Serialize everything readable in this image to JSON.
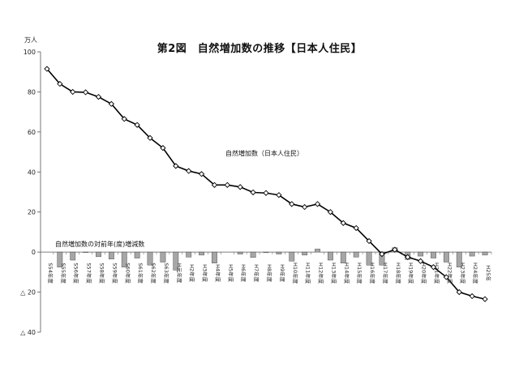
{
  "chart_data": {
    "type": "line",
    "title": "第2図　自然増加数の推移【日本人住民】",
    "ylabel": "万人",
    "ylim": [
      -40,
      100
    ],
    "yticks": [
      100,
      80,
      60,
      40,
      20,
      0,
      -20,
      -40
    ],
    "ytick_labels": [
      "100",
      "80",
      "60",
      "40",
      "20",
      "0",
      "△ 20",
      "△ 40"
    ],
    "categories": [
      "S54年度",
      "S55年度",
      "S56年度",
      "S57年度",
      "S58年度",
      "S59年度",
      "S60年度",
      "S61年度",
      "S62年度",
      "S63年度",
      "H元年度",
      "H2年度",
      "H3年度",
      "H4年度",
      "H5年度",
      "H6年度",
      "H7年度",
      "H8年度",
      "H9年度",
      "H10年度",
      "H11年度",
      "H12年度",
      "H13年度",
      "H14年度",
      "H15年度",
      "H16年度",
      "H17年度",
      "H18年度",
      "H19年度",
      "H20年度",
      "H21年度",
      "H22年度",
      "H23年度",
      "H24年度",
      "H25年"
    ],
    "series": [
      {
        "name": "自然増加数（日本人住民）",
        "kind": "line",
        "marker": "diamond",
        "values": [
          91.5,
          84,
          80,
          79.8,
          77.5,
          74,
          66.5,
          63.5,
          57,
          52,
          43,
          40.5,
          39,
          33.5,
          33.5,
          32.5,
          29.8,
          29.5,
          28.5,
          24,
          22.5,
          24,
          20,
          14.5,
          12,
          5.5,
          -1,
          1.2,
          -2.5,
          -4.5,
          -7.5,
          -12.5,
          -20,
          -22,
          -23.5
        ]
      },
      {
        "name": "自然増加数の対前年(度)増減数",
        "kind": "bar",
        "values": [
          null,
          -7.5,
          -4,
          -0.2,
          -2.3,
          -3.5,
          -7.5,
          -3,
          -6.5,
          -5,
          -9,
          -2.5,
          -1.5,
          -5.5,
          0,
          -1,
          -2.7,
          -0.3,
          -1,
          -4.5,
          -1.5,
          1.5,
          -4,
          -5.5,
          -2.5,
          -6.5,
          -6.5,
          2.2,
          -3.7,
          -2,
          -3,
          -5,
          -7.5,
          -2,
          -1.5
        ]
      }
    ],
    "annotations": [
      "自然増加数（日本人住民）",
      "自然増加数の対前年(度)増減数"
    ],
    "grid": false,
    "legend": "none"
  }
}
